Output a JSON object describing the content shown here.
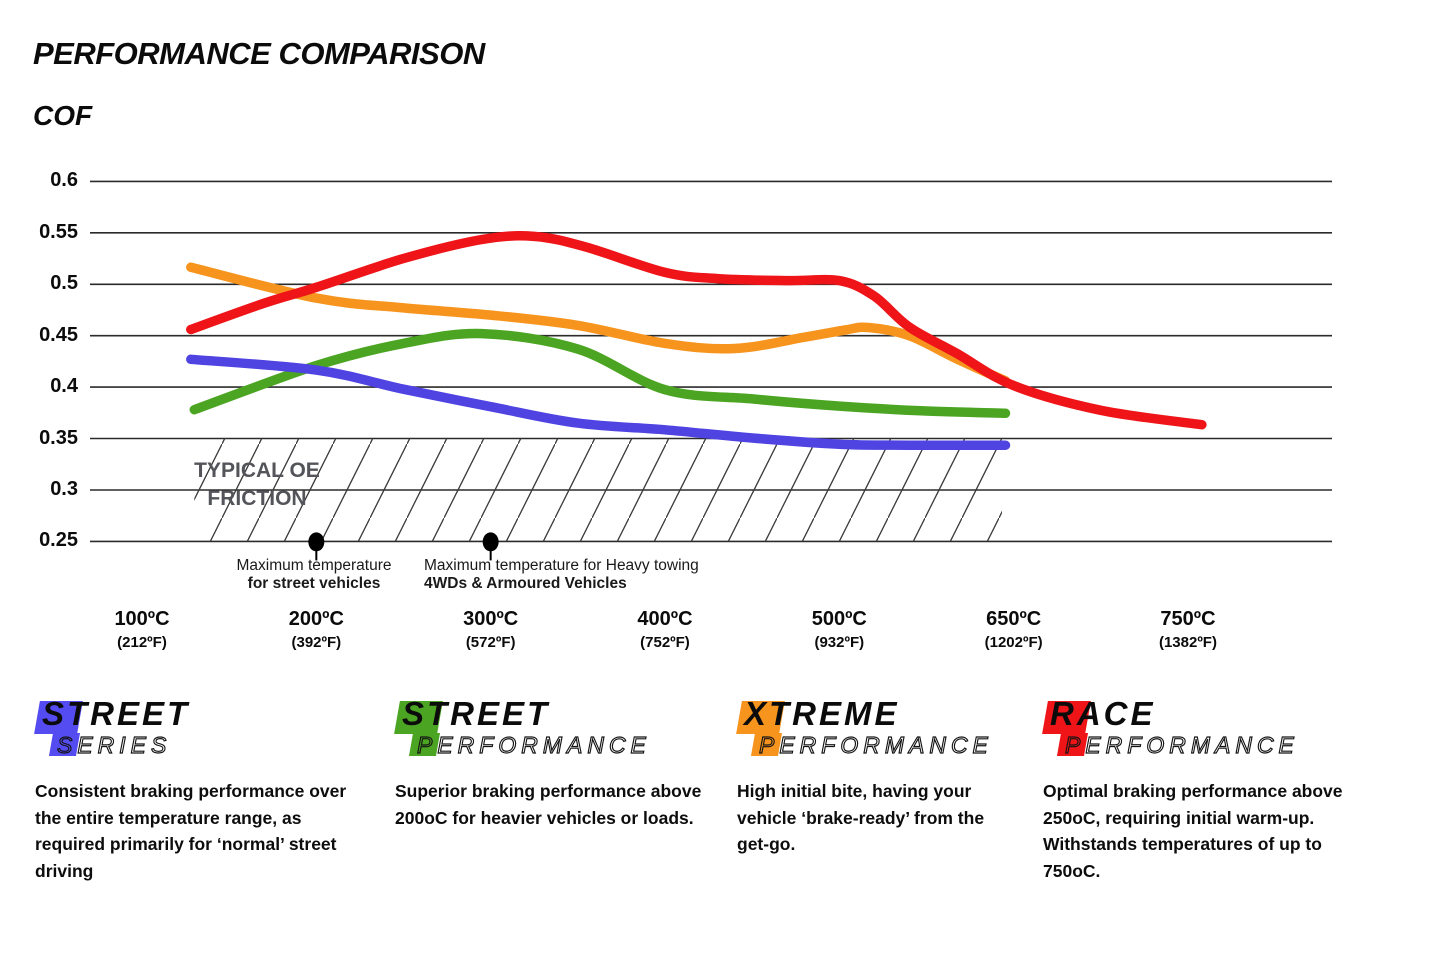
{
  "title": "PERFORMANCE COMPARISON",
  "y_axis_title": "COF",
  "chart_data": {
    "type": "line",
    "title": "PERFORMANCE COMPARISON",
    "ylabel": "COF",
    "ylim": [
      0.25,
      0.6
    ],
    "grid": true,
    "legend_position": "bottom",
    "y_ticks": [
      {
        "v": 0.6,
        "label": "0.6"
      },
      {
        "v": 0.55,
        "label": "0.55"
      },
      {
        "v": 0.5,
        "label": "0.5"
      },
      {
        "v": 0.45,
        "label": "0.45"
      },
      {
        "v": 0.4,
        "label": "0.4"
      },
      {
        "v": 0.35,
        "label": "0.35"
      },
      {
        "v": 0.3,
        "label": "0.3"
      },
      {
        "v": 0.25,
        "label": "0.25"
      }
    ],
    "x_ticks": [
      {
        "temp": 100,
        "c": "100ºC",
        "f": "(212ºF)"
      },
      {
        "temp": 200,
        "c": "200ºC",
        "f": "(392ºF)"
      },
      {
        "temp": 300,
        "c": "300ºC",
        "f": "(572ºF)"
      },
      {
        "temp": 400,
        "c": "400ºC",
        "f": "(752ºF)"
      },
      {
        "temp": 500,
        "c": "500ºC",
        "f": "(932ºF)"
      },
      {
        "temp": 650,
        "c": "650ºC",
        "f": "(1202ºF)"
      },
      {
        "temp": 750,
        "c": "750ºC",
        "f": "(1382ºF)"
      }
    ],
    "series": [
      {
        "name": "Street Series",
        "color": "#4f43e2",
        "points": [
          [
            128,
            0.427
          ],
          [
            200,
            0.4165
          ],
          [
            250,
            0.398
          ],
          [
            300,
            0.381
          ],
          [
            350,
            0.365
          ],
          [
            400,
            0.3585
          ],
          [
            450,
            0.3505
          ],
          [
            500,
            0.3445
          ],
          [
            560,
            0.3435
          ],
          [
            643,
            0.3435
          ]
        ]
      },
      {
        "name": "Street Performance",
        "color": "#4ba522",
        "points": [
          [
            130,
            0.378
          ],
          [
            200,
            0.421
          ],
          [
            250,
            0.4425
          ],
          [
            295,
            0.452
          ],
          [
            350,
            0.437
          ],
          [
            400,
            0.3975
          ],
          [
            450,
            0.3885
          ],
          [
            500,
            0.3815
          ],
          [
            570,
            0.377
          ],
          [
            643,
            0.3745
          ]
        ]
      },
      {
        "name": "Xtreme Performance",
        "color": "#f7941d",
        "points": [
          [
            128,
            0.5165
          ],
          [
            200,
            0.4865
          ],
          [
            250,
            0.477
          ],
          [
            300,
            0.47
          ],
          [
            350,
            0.46
          ],
          [
            400,
            0.4425
          ],
          [
            440,
            0.4375
          ],
          [
            480,
            0.4485
          ],
          [
            505,
            0.4555
          ],
          [
            525,
            0.458
          ],
          [
            560,
            0.45
          ],
          [
            600,
            0.428
          ],
          [
            643,
            0.406
          ]
        ]
      },
      {
        "name": "Race Performance",
        "color": "#ee1418",
        "points": [
          [
            128,
            0.456
          ],
          [
            170,
            0.4815
          ],
          [
            200,
            0.497
          ],
          [
            250,
            0.525
          ],
          [
            295,
            0.5435
          ],
          [
            325,
            0.5465
          ],
          [
            355,
            0.536
          ],
          [
            400,
            0.5115
          ],
          [
            430,
            0.5055
          ],
          [
            470,
            0.5035
          ],
          [
            500,
            0.5035
          ],
          [
            530,
            0.4885
          ],
          [
            560,
            0.4585
          ],
          [
            600,
            0.4335
          ],
          [
            650,
            0.4015
          ],
          [
            700,
            0.3775
          ],
          [
            758,
            0.3635
          ]
        ]
      }
    ],
    "oe_band": {
      "label_line1": "TYPICAL OE",
      "label_line2": "FRICTION",
      "value_from": 0.25,
      "value_to": 0.35,
      "temp_from": 130,
      "temp_to": 640,
      "hatch_color": "#3a3a3a"
    },
    "markers": [
      {
        "temp": 200
      },
      {
        "temp": 300
      }
    ]
  },
  "annotations": {
    "street_max": {
      "line1": "Maximum temperature",
      "line2": "for street vehicles"
    },
    "towing_max": {
      "line1": "Maximum temperature for Heavy towing",
      "line2": "4WDs & Armoured Vehicles"
    }
  },
  "legend": [
    {
      "word_top": "STREET",
      "word_bottom": "SERIES",
      "color": "#544bf0",
      "description": "Consistent braking performance over the entire temperature range, as required primarily for ‘normal’ street driving"
    },
    {
      "word_top": "STREET",
      "word_bottom": "PERFORMANCE",
      "color": "#4ba522",
      "description": "Superior braking performance above 200oC for heavier vehicles or loads."
    },
    {
      "word_top": "XTREME",
      "word_bottom": "PERFORMANCE",
      "color": "#f7941d",
      "description": "High initial bite, having your vehicle ‘brake-ready’ from the get-go."
    },
    {
      "word_top": "RACE",
      "word_bottom": "PERFORMANCE",
      "color": "#ee1418",
      "description": "Optimal braking performance above 250oC, requiring initial warm-up. Withstands temperatures of up to 750oC."
    }
  ]
}
